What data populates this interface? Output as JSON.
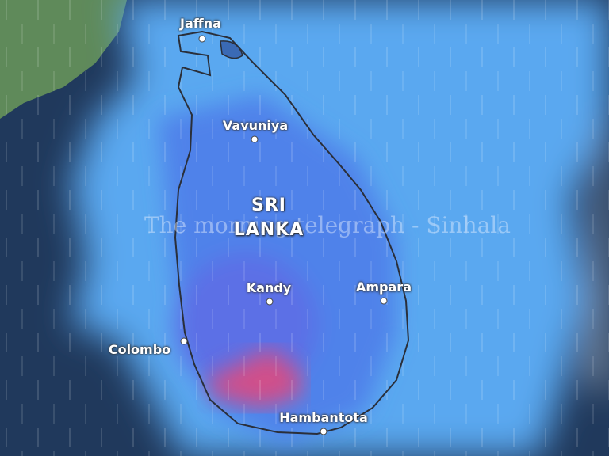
{
  "country_label": {
    "line1": "SRI",
    "line2": "LANKA"
  },
  "cities": [
    {
      "name": "Jaffna"
    },
    {
      "name": "Vavuniya"
    },
    {
      "name": "Kandy"
    },
    {
      "name": "Ampara"
    },
    {
      "name": "Colombo"
    },
    {
      "name": "Hambantota"
    }
  ],
  "watermark": "The morning telegraph - Sinhala",
  "colors": {
    "rain_light": "#5aa8f0",
    "rain_medium": "#4a78e8",
    "rain_heavy": "#d0508a",
    "land": "#5f8a5a",
    "sea": "#1e3658"
  }
}
